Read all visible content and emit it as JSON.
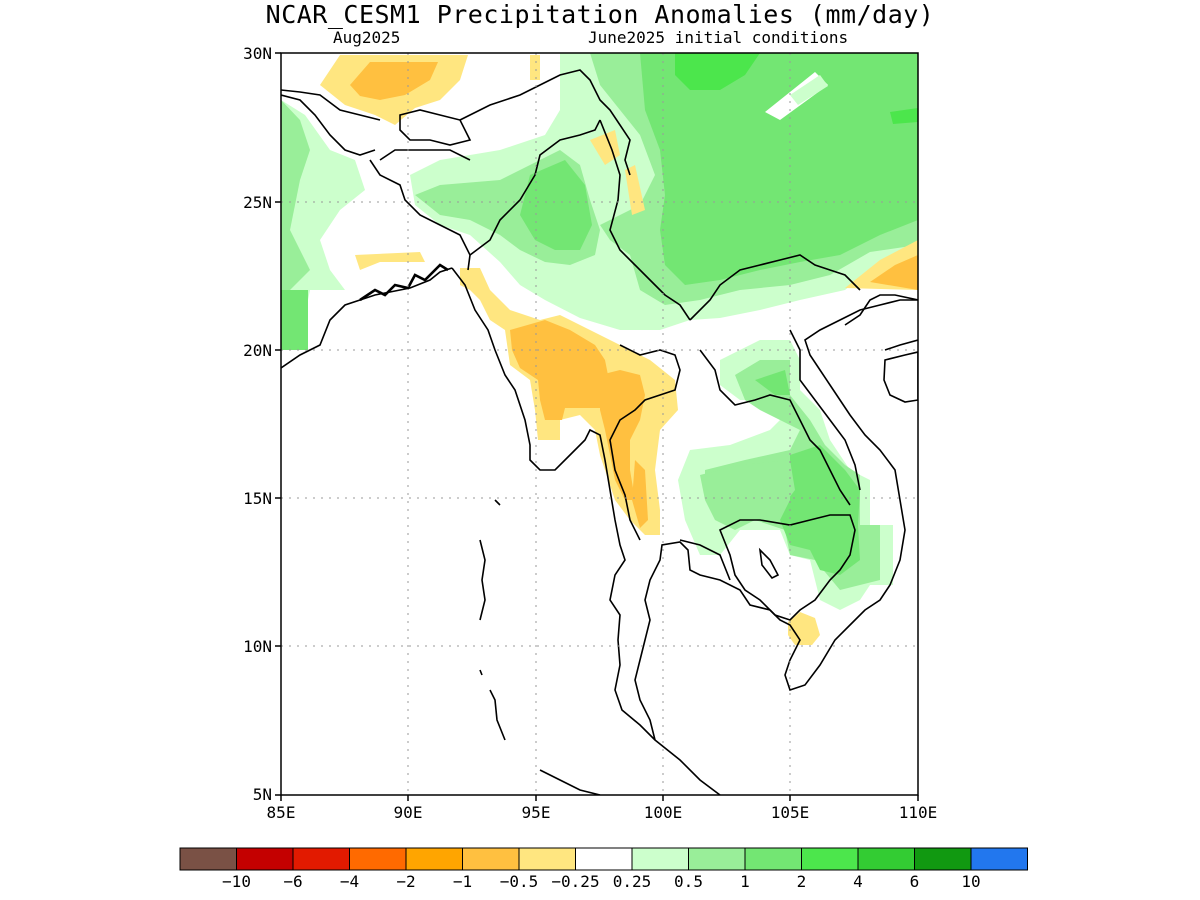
{
  "title": "NCAR_CESM1 Precipitation Anomalies (mm/day)",
  "target_month": "Aug2025",
  "initial_conditions": "June2025 initial conditions",
  "map": {
    "lon_range": [
      85,
      110
    ],
    "lat_range": [
      5,
      30
    ],
    "x_ticks": [
      "85E",
      "90E",
      "95E",
      "100E",
      "105E",
      "110E"
    ],
    "y_ticks": [
      "5N",
      "10N",
      "15N",
      "20N",
      "25N",
      "30N"
    ],
    "gridlines": true
  },
  "colorbar": {
    "colors": [
      "#7a5145",
      "#c40000",
      "#e21a00",
      "#ff6a00",
      "#ffa500",
      "#ffc040",
      "#ffe680",
      "#ffffff",
      "#ccffcc",
      "#99ee99",
      "#73e673",
      "#4ce64c",
      "#33cc33",
      "#119911",
      "#2277ee"
    ],
    "labels": [
      "-10",
      "-6",
      "-4",
      "-2",
      "-1",
      "-0.5",
      "-0.25",
      "0.25",
      "0.5",
      "1",
      "2",
      "4",
      "6",
      "10"
    ]
  },
  "palette": {
    "light_green": "#ccffcc",
    "green": "#99ee99",
    "mid_green": "#73e673",
    "bright_green": "#4ce64c",
    "light_yellow": "#ffe680",
    "orange_yellow": "#ffc040"
  }
}
